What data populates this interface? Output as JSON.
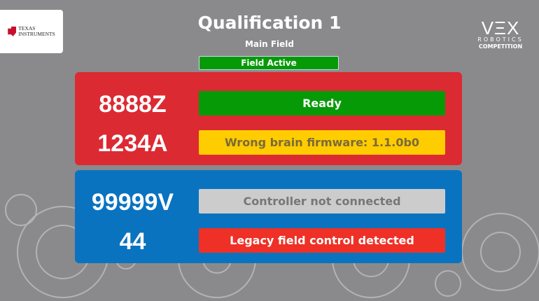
{
  "header": {
    "title": "Qualification 1",
    "field": "Main Field",
    "field_status": "Field Active",
    "sponsor_logo": "Texas Instruments",
    "vex_logo": {
      "big": "VEX",
      "mid": "ROBOTICS",
      "small": "COMPETITION"
    }
  },
  "alliances": [
    {
      "color": "#dc2a33",
      "teams": [
        {
          "number": "8888Z",
          "status": "Ready",
          "status_color": "#079a07"
        },
        {
          "number": "1234A",
          "status": "Wrong brain firmware: 1.1.0b0",
          "status_color": "#ffcc00"
        }
      ]
    },
    {
      "color": "#0a73c0",
      "teams": [
        {
          "number": "99999V",
          "status": "Controller not connected",
          "status_color": "#cccccc"
        },
        {
          "number": "44",
          "status": "Legacy field control detected",
          "status_color": "#ef3026"
        }
      ]
    }
  ]
}
